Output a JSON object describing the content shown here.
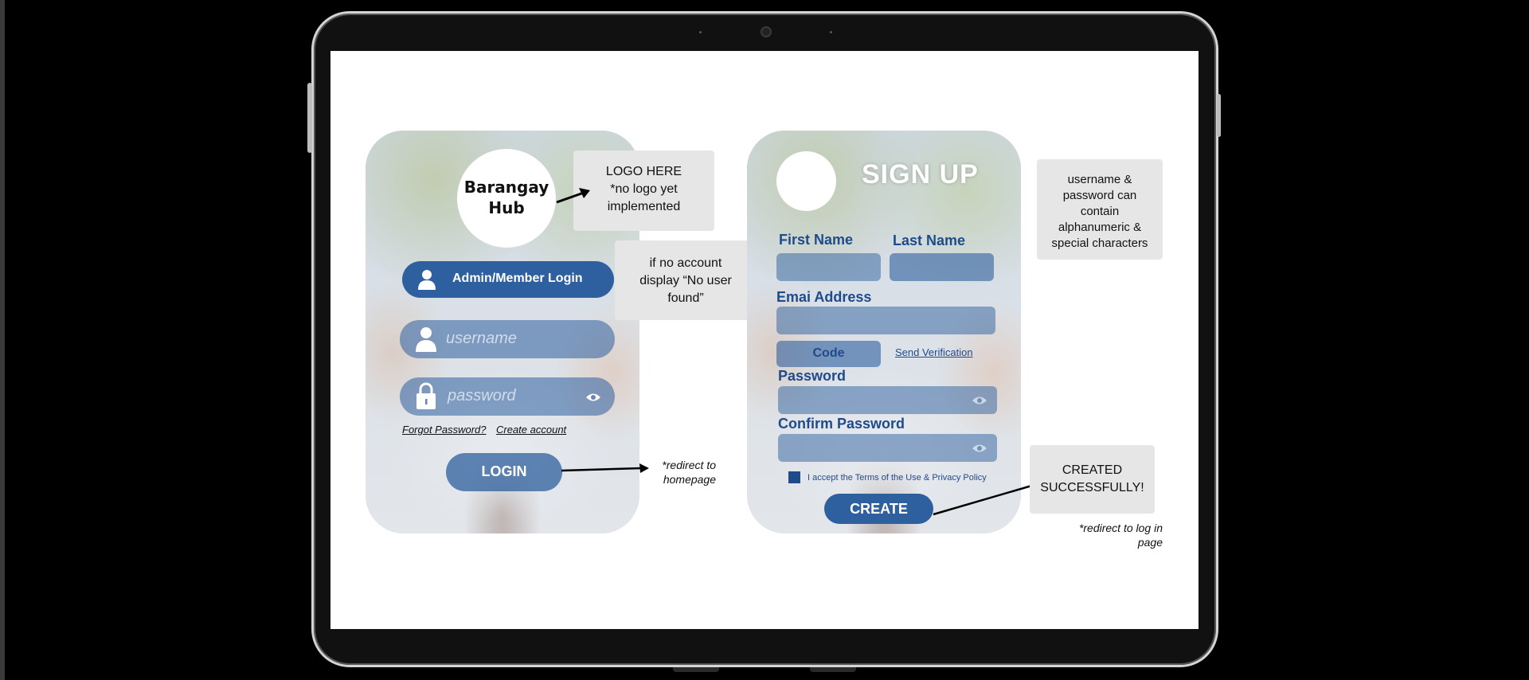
{
  "login": {
    "logo_line1": "Barangay",
    "logo_line2": "Hub",
    "role_button": "Admin/Member Login",
    "username_placeholder": "username",
    "password_placeholder": "password",
    "forgot_password": "Forgot Password?",
    "create_account": "Create account",
    "login_button": "LOGIN"
  },
  "signup": {
    "title": "SIGN UP",
    "first_name_label": "First Name",
    "last_name_label": "Last Name",
    "email_label": "Emai Address",
    "code_button": "Code",
    "send_verification": "Send Verification",
    "password_label": "Password",
    "confirm_password_label": "Confirm Password",
    "terms_text": "I accept the Terms of the Use & Privacy Policy",
    "create_button": "CREATE"
  },
  "notes": {
    "logo_note": [
      "LOGO HERE",
      "*no logo yet",
      "implemented"
    ],
    "no_account_note": [
      "if no account",
      "display “No user",
      "found”"
    ],
    "redirect_home": [
      "*redirect to",
      "homepage"
    ],
    "credentials_note": [
      "username &",
      "password can",
      "contain",
      "alphanumeric &",
      "special characters"
    ],
    "created_note": [
      "CREATED",
      "SUCCESSFULLY!"
    ],
    "redirect_login": [
      "*redirect to log in",
      "page"
    ]
  },
  "colors": {
    "accent": "#2e5f9e",
    "label": "#1f4b8a",
    "note_bg": "#e6e6e6"
  }
}
